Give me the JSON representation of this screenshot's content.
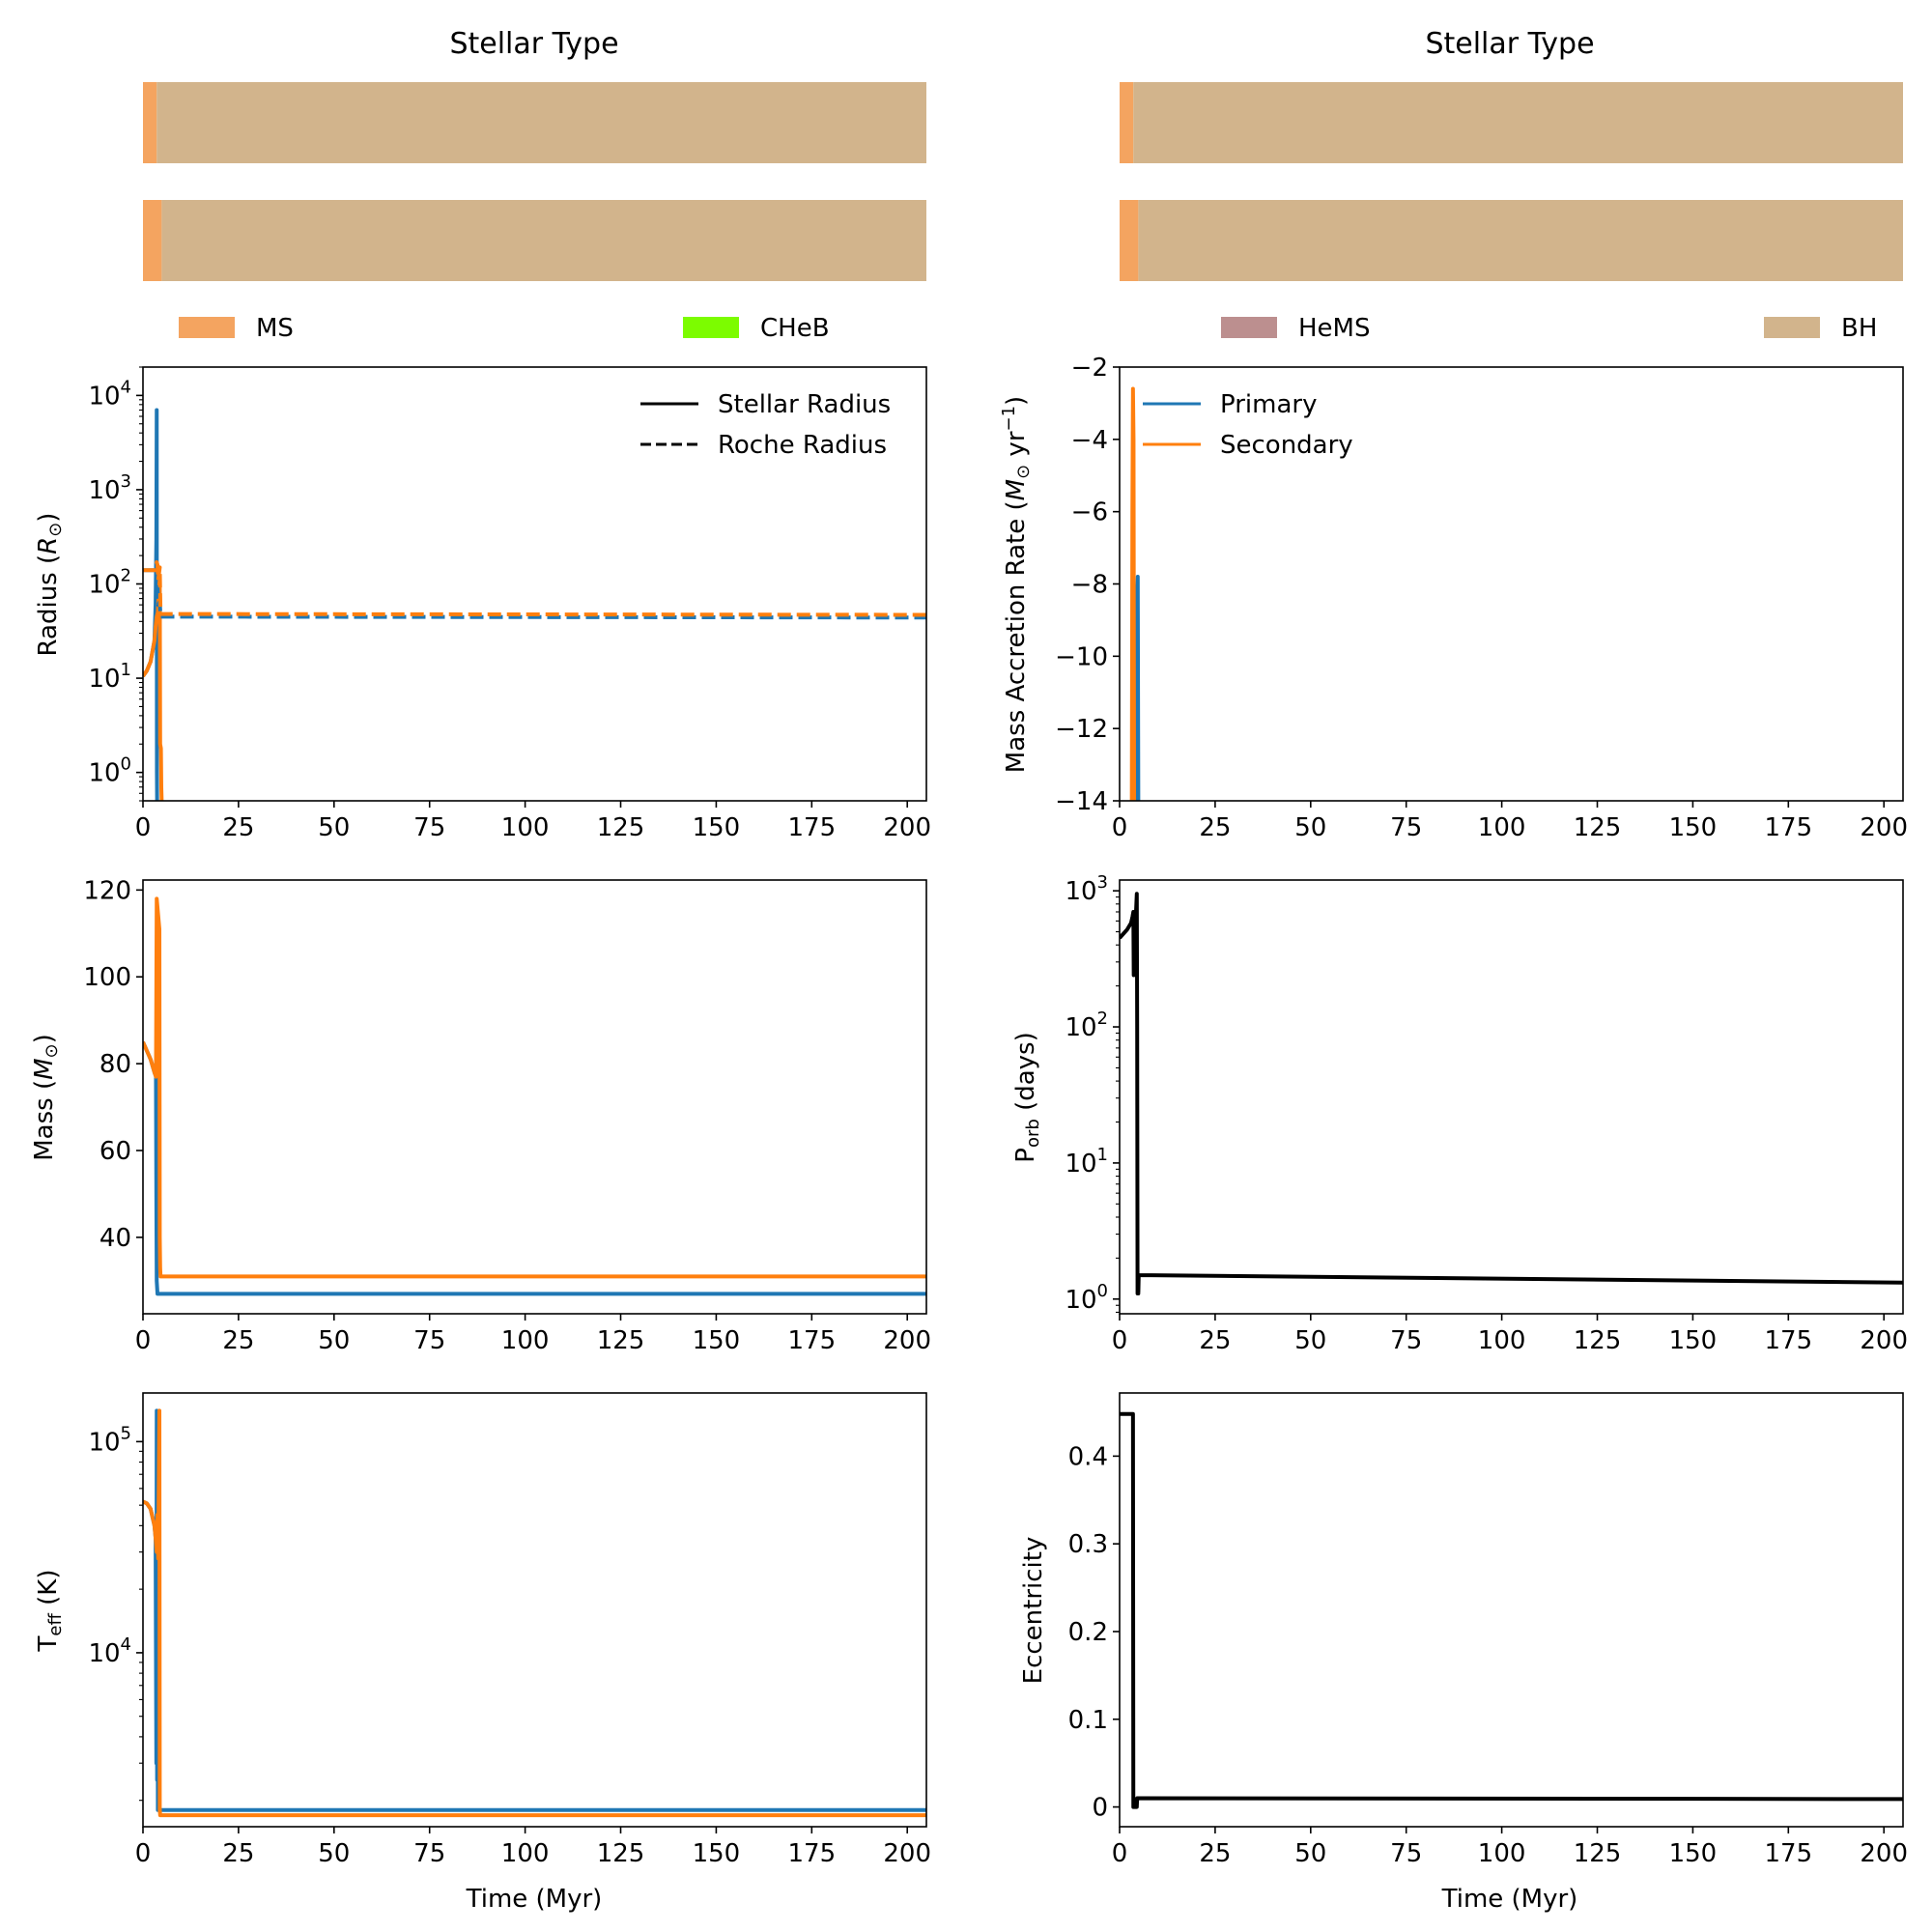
{
  "stellar_type_panels": [
    {
      "title": "Stellar Type",
      "rows": [
        {
          "segments": [
            {
              "type": "MS",
              "start": 0,
              "end": 3.6
            },
            {
              "type": "BH",
              "start": 3.6,
              "end": 205
            }
          ]
        },
        {
          "segments": [
            {
              "type": "MS",
              "start": 0,
              "end": 4.9
            },
            {
              "type": "BH",
              "start": 4.9,
              "end": 205
            }
          ]
        }
      ]
    },
    {
      "title": "Stellar Type",
      "rows": [
        {
          "segments": [
            {
              "type": "MS",
              "start": 0,
              "end": 3.6
            },
            {
              "type": "BH",
              "start": 3.6,
              "end": 205
            }
          ]
        },
        {
          "segments": [
            {
              "type": "MS",
              "start": 0,
              "end": 4.9
            },
            {
              "type": "BH",
              "start": 4.9,
              "end": 205
            }
          ]
        }
      ]
    }
  ],
  "stellar_type_legend": [
    {
      "label": "MS",
      "color": "#F4A460"
    },
    {
      "label": "CHeB",
      "color": "#7CFC00"
    },
    {
      "label": "HeMS",
      "color": "#BC8F8F"
    },
    {
      "label": "BH",
      "color": "#D2B48C"
    }
  ],
  "colors": {
    "primary": "#1f77b4",
    "secondary": "#ff7f0e",
    "black": "#000000"
  },
  "chart_data": [
    {
      "id": "radius",
      "type": "line",
      "xlabel": "Time (Myr)",
      "ylabel": "Radius (R⊙)",
      "yscale": "log",
      "xlim": [
        0,
        205
      ],
      "ylim": [
        0.5,
        20000
      ],
      "xticks": [
        0,
        25,
        50,
        75,
        100,
        125,
        150,
        175,
        200
      ],
      "yticks": [
        {
          "value": 1,
          "exp": "0"
        },
        {
          "value": 10,
          "exp": "1"
        },
        {
          "value": 100,
          "exp": "2"
        },
        {
          "value": 1000,
          "exp": "3"
        },
        {
          "value": 10000,
          "exp": "4"
        }
      ],
      "legend": {
        "position": "upper right",
        "entries": [
          {
            "label": "Stellar Radius",
            "style": "solid"
          },
          {
            "label": "Roche Radius",
            "style": "dashed"
          }
        ]
      },
      "series": [
        {
          "role": "primary",
          "style": "solid",
          "x": [
            0,
            1,
            2,
            3,
            3.3,
            3.5,
            3.6,
            3.65,
            3.7
          ],
          "y": [
            10.5,
            12,
            15,
            25,
            60,
            300,
            7000,
            1,
            0.5
          ]
        },
        {
          "role": "secondary",
          "style": "solid",
          "x": [
            0,
            1,
            2,
            3,
            3.3,
            3.6,
            3.9,
            4.3,
            4.4,
            4.5,
            4.7,
            4.8,
            4.9
          ],
          "y": [
            10.5,
            12,
            15,
            25,
            35,
            45,
            50,
            100,
            110,
            2,
            1.8,
            0.7,
            0.5
          ]
        },
        {
          "role": "primary",
          "style": "dashed",
          "x": [
            0,
            3.3,
            3.5,
            3.8,
            4.0,
            4.4,
            4.6,
            5,
            205
          ],
          "y": [
            140,
            140,
            160,
            100,
            60,
            65,
            45,
            45,
            44
          ]
        },
        {
          "role": "secondary",
          "style": "dashed",
          "x": [
            0,
            3.3,
            3.6,
            3.8,
            4.0,
            4.4,
            4.6,
            5,
            205
          ],
          "y": [
            140,
            140,
            170,
            160,
            110,
            150,
            48,
            48,
            47
          ]
        }
      ]
    },
    {
      "id": "mdot",
      "type": "line",
      "xlabel": "Time (Myr)",
      "ylabel": "Mass Accretion Rate (M⊙ yr⁻¹)",
      "yscale": "linear",
      "xlim": [
        0,
        205
      ],
      "ylim": [
        -14,
        -2
      ],
      "xticks": [
        0,
        25,
        50,
        75,
        100,
        125,
        150,
        175,
        200
      ],
      "yticks": [
        -14,
        -12,
        -10,
        -8,
        -6,
        -4,
        -2
      ],
      "legend": {
        "position": "upper left",
        "entries": [
          {
            "label": "Primary",
            "role": "primary"
          },
          {
            "label": "Secondary",
            "role": "secondary"
          }
        ]
      },
      "series": [
        {
          "role": "primary",
          "x": [
            4.3,
            4.45,
            4.6,
            4.75,
            4.9
          ],
          "y": [
            -14,
            -10,
            -8.3,
            -7.8,
            -14
          ]
        },
        {
          "role": "secondary",
          "x": [
            3.2,
            3.35,
            3.5,
            3.65,
            3.8
          ],
          "y": [
            -14,
            -6,
            -2.6,
            -4,
            -14
          ]
        }
      ]
    },
    {
      "id": "mass",
      "type": "line",
      "xlabel": "Time (Myr)",
      "ylabel": "Mass (M⊙)",
      "yscale": "linear",
      "xlim": [
        0,
        205
      ],
      "ylim": [
        22.4,
        122.3
      ],
      "xticks": [
        0,
        25,
        50,
        75,
        100,
        125,
        150,
        175,
        200
      ],
      "yticks": [
        40,
        60,
        80,
        100,
        120
      ],
      "series": [
        {
          "role": "primary",
          "x": [
            0,
            1,
            2,
            3,
            3.4,
            3.5,
            3.6,
            3.8,
            205
          ],
          "y": [
            85,
            83,
            81,
            78,
            77,
            50,
            30,
            27,
            27
          ]
        },
        {
          "role": "secondary",
          "x": [
            0,
            1,
            2,
            3,
            3.4,
            3.6,
            4.3,
            4.4,
            4.5,
            4.6,
            4.9,
            205
          ],
          "y": [
            85,
            83,
            81,
            78,
            77,
            118,
            111,
            40,
            33,
            31,
            31,
            31
          ]
        }
      ]
    },
    {
      "id": "porb",
      "type": "line",
      "xlabel": "Time (Myr)",
      "ylabel": "P_orb (days)",
      "yscale": "log",
      "xlim": [
        0,
        205
      ],
      "ylim": [
        0.78,
        1200
      ],
      "xticks": [
        0,
        25,
        50,
        75,
        100,
        125,
        150,
        175,
        200
      ],
      "yticks": [
        {
          "value": 1,
          "exp": "0"
        },
        {
          "value": 10,
          "exp": "1"
        },
        {
          "value": 100,
          "exp": "2"
        },
        {
          "value": 1000,
          "exp": "3"
        }
      ],
      "series": [
        {
          "role": "black",
          "x": [
            0,
            2,
            3,
            3.4,
            3.6,
            3.7,
            3.8,
            4.0,
            4.3,
            4.5,
            4.6,
            4.7,
            4.8,
            4.9,
            5.0,
            205
          ],
          "y": [
            450,
            520,
            580,
            650,
            700,
            240,
            600,
            300,
            700,
            950,
            100,
            1.1,
            1.5,
            1.1,
            1.5,
            1.32
          ]
        }
      ]
    },
    {
      "id": "teff",
      "type": "line",
      "xlabel": "Time (Myr)",
      "ylabel": "T_eff (K)",
      "yscale": "log",
      "xlim": [
        0,
        205
      ],
      "ylim": [
        1500,
        170000
      ],
      "xticks": [
        0,
        25,
        50,
        75,
        100,
        125,
        150,
        175,
        200
      ],
      "yticks": [
        {
          "value": 10000,
          "exp": "4"
        },
        {
          "value": 100000,
          "exp": "5"
        }
      ],
      "series": [
        {
          "role": "primary",
          "x": [
            0,
            1,
            2,
            3,
            3.3,
            3.5,
            3.6,
            3.7,
            3.8,
            3.9,
            4.0,
            205
          ],
          "y": [
            52000,
            51000,
            48000,
            40000,
            35000,
            3000,
            140000,
            2500,
            28000,
            1800,
            1800,
            1800
          ]
        },
        {
          "role": "secondary",
          "x": [
            0,
            1,
            2,
            3,
            3.3,
            3.6,
            3.8,
            4.0,
            4.3,
            4.4,
            4.5,
            4.6,
            4.8,
            205
          ],
          "y": [
            52000,
            51000,
            48000,
            40000,
            35000,
            30000,
            45000,
            28000,
            140000,
            1800,
            1700,
            1700,
            1700,
            1700
          ]
        }
      ]
    },
    {
      "id": "ecc",
      "type": "line",
      "xlabel": "Time (Myr)",
      "ylabel": "Eccentricity",
      "yscale": "linear",
      "xlim": [
        0,
        205
      ],
      "ylim": [
        -0.0225,
        0.472
      ],
      "xticks": [
        0,
        25,
        50,
        75,
        100,
        125,
        150,
        175,
        200
      ],
      "yticks": [
        0.0,
        0.1,
        0.2,
        0.3,
        0.4
      ],
      "series": [
        {
          "role": "black",
          "x": [
            0,
            3.5,
            3.6,
            4.5,
            4.6,
            205
          ],
          "y": [
            0.448,
            0.448,
            0.0,
            0.0,
            0.01,
            0.009
          ]
        }
      ]
    }
  ]
}
